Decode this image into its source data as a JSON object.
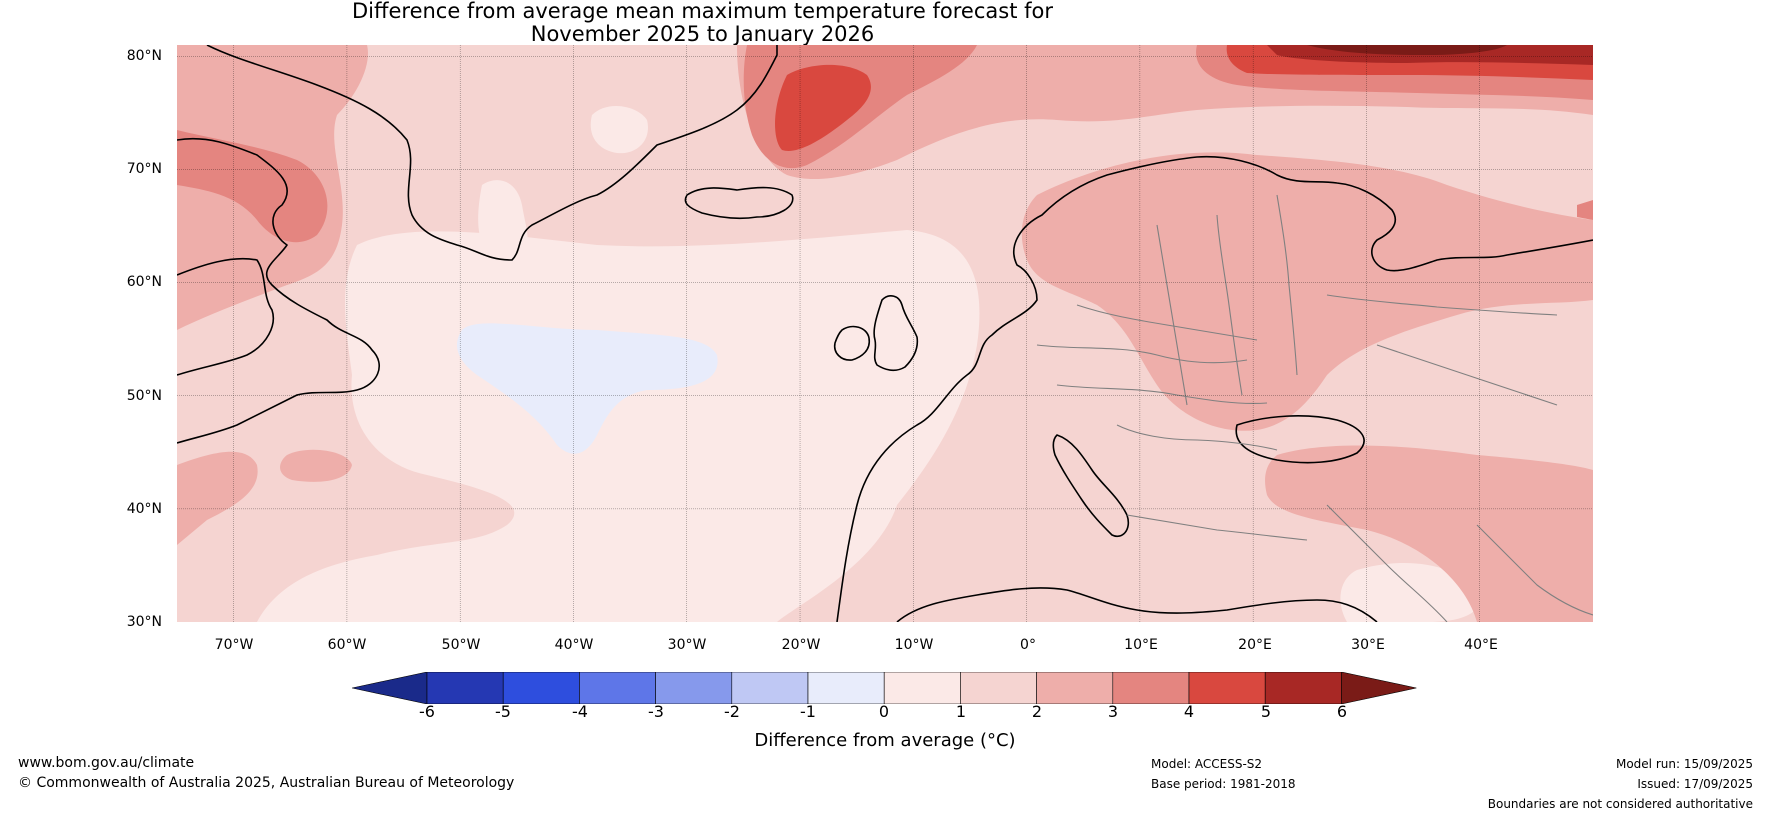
{
  "title": {
    "line1": "Difference from average mean maximum temperature forecast for",
    "line2": "November 2025 to January 2026"
  },
  "map": {
    "extent": {
      "lon": [
        -75,
        50
      ],
      "lat": [
        30,
        81
      ]
    },
    "latitude_labels": [
      "80°N",
      "70°N",
      "60°N",
      "50°N",
      "40°N",
      "30°N"
    ],
    "longitude_labels": [
      "70°W",
      "60°W",
      "50°W",
      "40°W",
      "30°W",
      "20°W",
      "10°W",
      "0°",
      "10°E",
      "20°E",
      "30°E",
      "40°E"
    ],
    "colors": {
      "anom_0_1": "#fbe9e7",
      "anom_1_2": "#f5d4d1",
      "anom_2_3": "#eeaeaa",
      "anom_3_4": "#e48580",
      "anom_4_5": "#d9483f",
      "anom_5_6": "#a82825",
      "anom_gt6": "#7a1b17",
      "anom_m1_0": "#e8ecfb",
      "coastline": "#000000",
      "borders": "#808080",
      "gridlines": "#000000"
    }
  },
  "colorbar": {
    "tick_labels": [
      "-6",
      "-5",
      "-4",
      "-3",
      "-2",
      "-1",
      "0",
      "1",
      "2",
      "3",
      "4",
      "5",
      "6"
    ],
    "colors": [
      "#1a2a8a",
      "#2538b3",
      "#2e4ede",
      "#5e76e8",
      "#8699ec",
      "#bfc8f4",
      "#e8ecfb",
      "#fbe9e7",
      "#f5d4d1",
      "#eeaeaa",
      "#e48580",
      "#d9483f",
      "#a82825",
      "#7a1b17"
    ],
    "label": "Difference from average (°C)"
  },
  "footer": {
    "website": "www.bom.gov.au/climate",
    "copyright": "© Commonwealth of Australia 2025, Australian Bureau of Meteorology",
    "model": "Model: ACCESS-S2",
    "base_period": "Base period: 1981-2018",
    "model_run": "Model run: 15/09/2025",
    "issued": "Issued: 17/09/2025",
    "disclaimer": "Boundaries are not considered authoritative"
  }
}
